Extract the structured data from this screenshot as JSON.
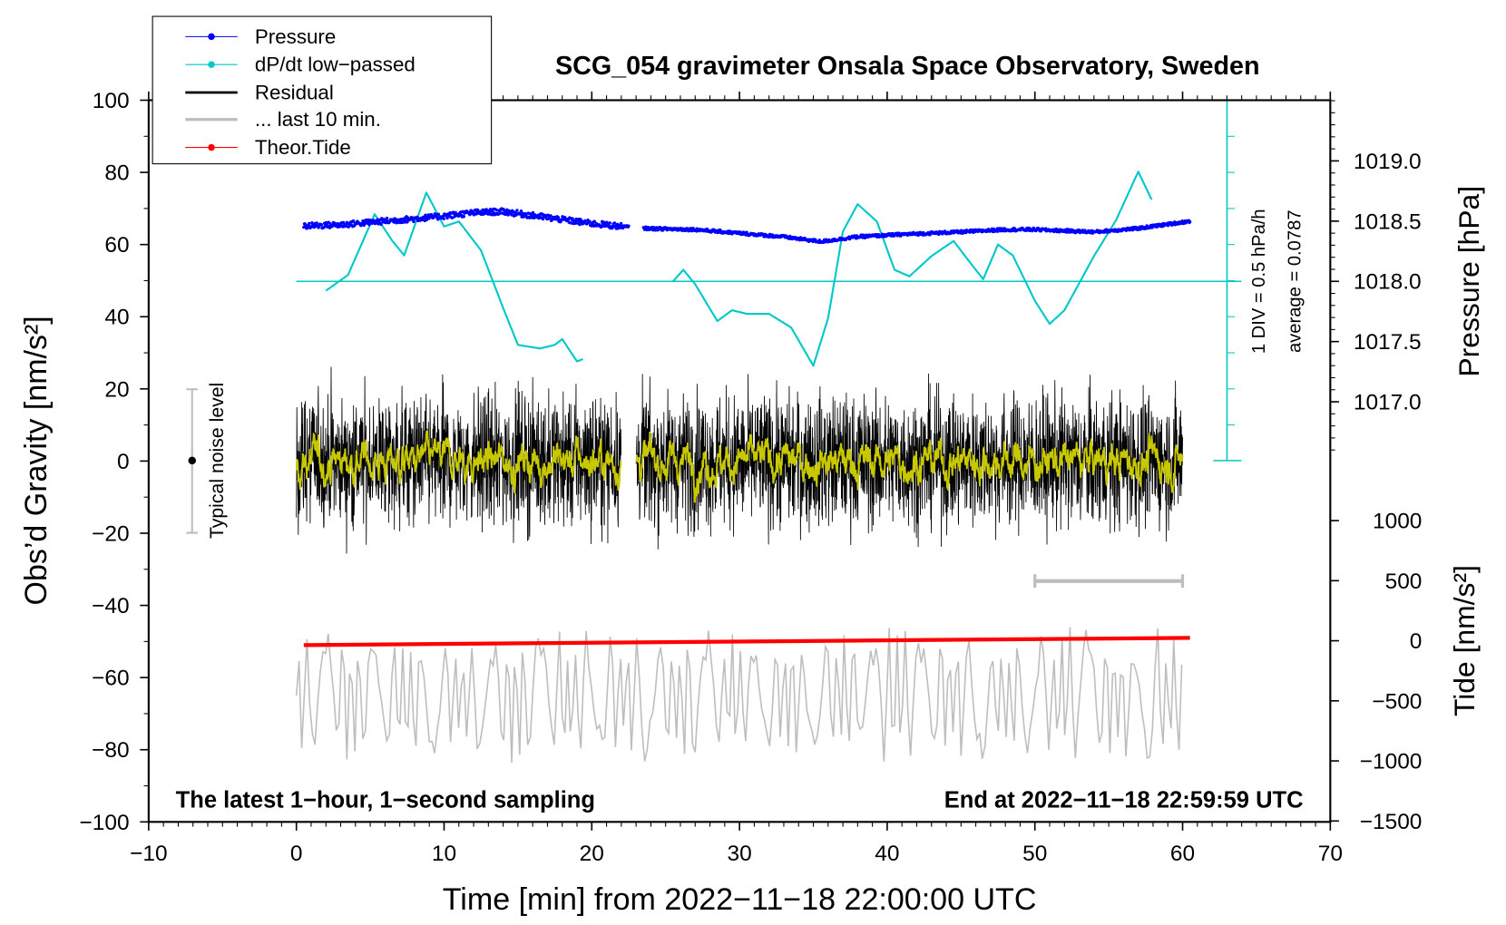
{
  "chart_data": {
    "type": "line",
    "title": "SCG_054 gravimeter Onsala Space Observatory, Sweden",
    "xlabel": "Time [min] from 2022−11−18 22:00:00 UTC",
    "ylabel_left": "Obs’d Gravity [nm/s²]",
    "ylabel_right_top": "Pressure [hPa]",
    "ylabel_right_bottom": "Tide [nm/s²]",
    "xlim": [
      -10,
      70
    ],
    "ylim": [
      -100,
      100
    ],
    "x_ticks": [
      "−10",
      "0",
      "10",
      "20",
      "30",
      "40",
      "50",
      "60",
      "70"
    ],
    "y_ticks": [
      "100",
      "80",
      "60",
      "40",
      "20",
      "0",
      "−20",
      "−40",
      "−60",
      "−80",
      "−100"
    ],
    "pressure_ticks": [
      "1019.0",
      "1018.5",
      "1018.0",
      "1017.5",
      "1017.0"
    ],
    "tide_ticks": [
      "1000",
      "500",
      "0",
      "−500",
      "−1000",
      "−1500"
    ],
    "legend": [
      "Pressure",
      "dP/dt low−passed",
      "Residual",
      "... last 10 min.",
      "Theor.Tide"
    ],
    "legend_placement": "top-left",
    "annotation_left": "The latest 1−hour, 1−second sampling",
    "annotation_right": "End at 2022−11−18 22:59:59 UTC",
    "noise_label": "Typical noise level",
    "div_label": "1 DIV = 0.5 hPa/h",
    "average_label": "average = 0.0787",
    "colors": {
      "pressure": "#0000ff",
      "dpdt": "#00c8c8",
      "residual": "#000000",
      "smooth": "#c8c800",
      "last10": "#bebebe",
      "tide": "#ff0000"
    },
    "pressure": {
      "unit": "hPa",
      "segments": [
        {
          "x": [
            0.5,
            3,
            6,
            9,
            12,
            14,
            17,
            20,
            22.5
          ],
          "y": [
            1018.46,
            1018.47,
            1018.5,
            1018.53,
            1018.57,
            1018.58,
            1018.53,
            1018.48,
            1018.45
          ]
        },
        {
          "x": [
            23.5,
            27,
            30,
            33,
            35.5,
            38,
            41,
            45,
            48,
            50,
            54,
            57,
            60.5
          ],
          "y": [
            1018.44,
            1018.43,
            1018.4,
            1018.37,
            1018.33,
            1018.37,
            1018.39,
            1018.41,
            1018.43,
            1018.43,
            1018.41,
            1018.44,
            1018.5
          ]
        }
      ]
    },
    "dpdt": {
      "unit": "hPa/h",
      "segments": [
        {
          "x": [
            2,
            3.5,
            5.3,
            6.5,
            7.3,
            8.8,
            10,
            11,
            12.5,
            14,
            15,
            16.5,
            17.5,
            18,
            19,
            19.5
          ],
          "y": [
            -0.13,
            0.09,
            0.93,
            0.56,
            0.36,
            1.23,
            0.76,
            0.83,
            0.43,
            -0.37,
            -0.88,
            -0.93,
            -0.88,
            -0.8,
            -1.11,
            -1.07
          ]
        },
        {
          "x": [
            25.5,
            26.2,
            27,
            28.5,
            29.5,
            30.5,
            32,
            33.5,
            35,
            36,
            37,
            38,
            39.3,
            40.5,
            41.5,
            43,
            44.5,
            45.5,
            46.5,
            47.5,
            48.5,
            50,
            51,
            52,
            54,
            55.5,
            57,
            58
          ],
          "y": [
            0,
            0.16,
            -0.04,
            -0.55,
            -0.4,
            -0.45,
            -0.45,
            -0.64,
            -1.17,
            -0.51,
            0.69,
            1.07,
            0.83,
            0.16,
            0.07,
            0.35,
            0.56,
            0.29,
            0.03,
            0.51,
            0.36,
            -0.27,
            -0.59,
            -0.4,
            0.35,
            0.85,
            1.52,
            1.09
          ]
        }
      ]
    },
    "tide": {
      "unit": "nm/s² (gravity axis)",
      "x": [
        0.5,
        60.5
      ],
      "y": [
        -51,
        -49
      ]
    },
    "residual": {
      "segments": [
        [
          0,
          22
        ],
        [
          23,
          60
        ]
      ],
      "amplitude": 15
    },
    "last10": {
      "center": -65,
      "amplitude": 22,
      "marker_range": [
        50,
        60
      ]
    }
  }
}
